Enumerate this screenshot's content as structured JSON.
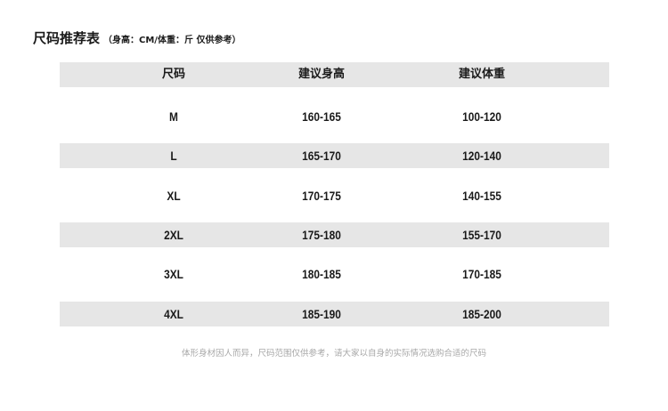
{
  "title": "尺码推荐表",
  "subtitle": "（身高：CM/体重：斤 仅供参考）",
  "headers": [
    "尺码",
    "建议身高",
    "建议体重"
  ],
  "rows": [
    [
      "M",
      "160-165",
      "100-120"
    ],
    [
      "L",
      "165-170",
      "120-140"
    ],
    [
      "XL",
      "170-175",
      "140-155"
    ],
    [
      "2XL",
      "175-180",
      "155-170"
    ],
    [
      "3XL",
      "180-185",
      "170-185"
    ],
    [
      "4XL",
      "185-190",
      "185-200"
    ]
  ],
  "footnote": "体形身材因人而异，尺码范围仅供参考，请大家以自身的实际情况选购合适的尺码",
  "colors": {
    "band": "#e6e6e6",
    "text": "#1a1a1a",
    "footnote": "#a8a8a8"
  }
}
